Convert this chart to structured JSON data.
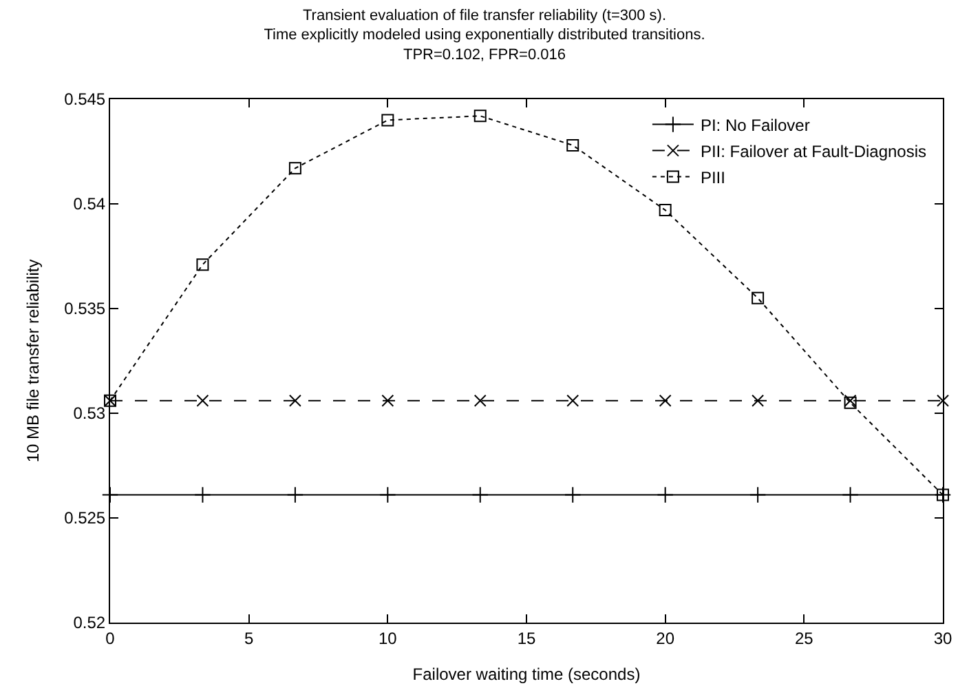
{
  "chart_data": {
    "type": "line",
    "title": "Transient evaluation of file transfer reliability (t=300 s).\nTime explicitly modeled using exponentially distributed transitions.\nTPR=0.102, FPR=0.016",
    "xlabel": "Failover waiting time (seconds)",
    "ylabel": "10 MB file transfer reliability",
    "x": [
      0,
      3.333,
      6.667,
      10,
      13.333,
      16.667,
      20,
      23.333,
      26.667,
      30
    ],
    "series": [
      {
        "name": "PI: No Failover",
        "color": "#000000",
        "marker": "cross",
        "line_style": "solid",
        "values": [
          0.5261,
          0.5261,
          0.5261,
          0.5261,
          0.5261,
          0.5261,
          0.5261,
          0.5261,
          0.5261,
          0.5261
        ]
      },
      {
        "name": "PII: Failover at Fault-Diagnosis",
        "color": "#000000",
        "marker": "cross",
        "line_style": "dashed",
        "values": [
          0.5306,
          0.5306,
          0.5306,
          0.5306,
          0.5306,
          0.5306,
          0.5306,
          0.5306,
          0.5306,
          0.5306
        ]
      },
      {
        "name": "PIII",
        "color": "#000000",
        "marker": "square",
        "line_style": "dotted",
        "values": [
          0.5306,
          0.5371,
          0.5417,
          0.544,
          0.5442,
          0.5428,
          0.5397,
          0.5355,
          0.5305,
          0.5261
        ]
      }
    ],
    "xlim": [
      0,
      30
    ],
    "xticks": [
      0,
      5,
      10,
      15,
      20,
      25,
      30
    ],
    "ylim": [
      0.52,
      0.545
    ],
    "yticks": [
      0.52,
      0.525,
      0.53,
      0.535,
      0.54,
      0.545
    ],
    "legend": "top right"
  }
}
